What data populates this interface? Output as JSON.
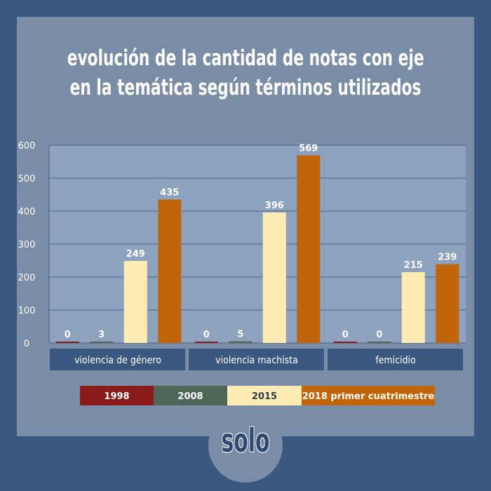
{
  "title_lines": [
    "evolución de la cantidad de notas con eje",
    "en la temática según términos utilizados"
  ],
  "logo_text": "solo",
  "chart_data": {
    "type": "bar",
    "categories": [
      "violencia de género",
      "violencia machista",
      "femicidio"
    ],
    "series": [
      {
        "name": "1998",
        "values": [
          0,
          0,
          0
        ],
        "color": "#8b1a1a"
      },
      {
        "name": "2008",
        "values": [
          3,
          5,
          0
        ],
        "color": "#4e6655"
      },
      {
        "name": "2015",
        "values": [
          249,
          396,
          215
        ],
        "color": "#fdedb5"
      },
      {
        "name": "2018 primer cuatrimestre",
        "values": [
          435,
          569,
          239
        ],
        "color": "#c0650a"
      }
    ],
    "y_ticks": [
      "0",
      "100",
      "200",
      "300",
      "400",
      "500",
      "600"
    ],
    "ylim": [
      0,
      600
    ],
    "grid": true,
    "legend_position": "bottom",
    "colors": {
      "plot_bg": "#8ca2bd",
      "category_bar": "#3b5880",
      "grid": "#4d6485"
    }
  }
}
